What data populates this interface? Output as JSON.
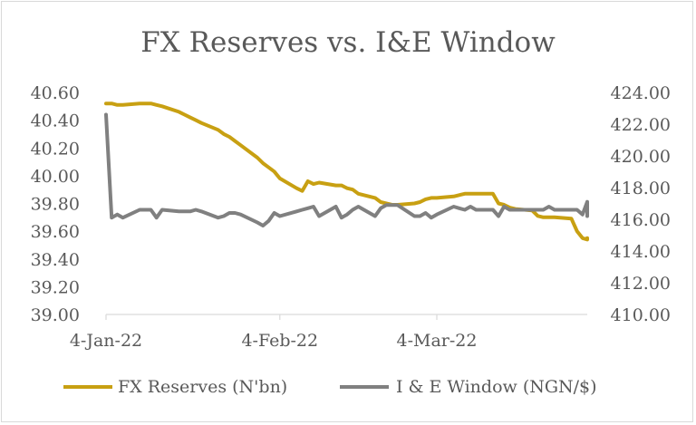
{
  "chart_data": {
    "type": "line",
    "title": "FX Reserves vs. I&E Window",
    "xlabel": "",
    "ylabel": "",
    "x_start": "2022-01-04",
    "x_ticks": [
      "4-Jan-22",
      "4-Feb-22",
      "4-Mar-22"
    ],
    "x_tick_dates": [
      "2022-01-04",
      "2022-02-04",
      "2022-03-04"
    ],
    "x_end": "2022-03-31",
    "y_left": {
      "ylim": [
        39.0,
        40.6
      ],
      "ticks": [
        "39.00",
        "39.20",
        "39.40",
        "39.60",
        "39.80",
        "40.00",
        "40.20",
        "40.40",
        "40.60"
      ]
    },
    "y_right": {
      "ylim": [
        410.0,
        424.0
      ],
      "ticks": [
        "410.00",
        "412.00",
        "414.00",
        "416.00",
        "418.00",
        "420.00",
        "422.00",
        "424.00"
      ]
    },
    "grid": false,
    "legend_position": "bottom",
    "series": [
      {
        "name": "FX Reserves  (N'bn)",
        "axis": "left",
        "color": "#c8a012",
        "points": [
          [
            "2022-01-04",
            40.52
          ],
          [
            "2022-01-05",
            40.52
          ],
          [
            "2022-01-06",
            40.51
          ],
          [
            "2022-01-07",
            40.51
          ],
          [
            "2022-01-10",
            40.52
          ],
          [
            "2022-01-11",
            40.52
          ],
          [
            "2022-01-12",
            40.52
          ],
          [
            "2022-01-13",
            40.51
          ],
          [
            "2022-01-14",
            40.5
          ],
          [
            "2022-01-17",
            40.46
          ],
          [
            "2022-01-18",
            40.44
          ],
          [
            "2022-01-19",
            40.42
          ],
          [
            "2022-01-20",
            40.4
          ],
          [
            "2022-01-21",
            40.38
          ],
          [
            "2022-01-24",
            40.33
          ],
          [
            "2022-01-25",
            40.3
          ],
          [
            "2022-01-26",
            40.28
          ],
          [
            "2022-01-27",
            40.25
          ],
          [
            "2022-01-28",
            40.22
          ],
          [
            "2022-01-31",
            40.13
          ],
          [
            "2022-02-01",
            40.09
          ],
          [
            "2022-02-02",
            40.06
          ],
          [
            "2022-02-03",
            40.03
          ],
          [
            "2022-02-04",
            39.98
          ],
          [
            "2022-02-07",
            39.91
          ],
          [
            "2022-02-08",
            39.89
          ],
          [
            "2022-02-09",
            39.96
          ],
          [
            "2022-02-10",
            39.94
          ],
          [
            "2022-02-11",
            39.95
          ],
          [
            "2022-02-14",
            39.93
          ],
          [
            "2022-02-15",
            39.93
          ],
          [
            "2022-02-16",
            39.91
          ],
          [
            "2022-02-17",
            39.9
          ],
          [
            "2022-02-18",
            39.87
          ],
          [
            "2022-02-21",
            39.84
          ],
          [
            "2022-02-22",
            39.81
          ],
          [
            "2022-02-23",
            39.8
          ],
          [
            "2022-02-24",
            39.79
          ],
          [
            "2022-02-25",
            39.79
          ],
          [
            "2022-02-28",
            39.8
          ],
          [
            "2022-03-01",
            39.81
          ],
          [
            "2022-03-02",
            39.83
          ],
          [
            "2022-03-03",
            39.84
          ],
          [
            "2022-03-04",
            39.84
          ],
          [
            "2022-03-07",
            39.85
          ],
          [
            "2022-03-08",
            39.86
          ],
          [
            "2022-03-09",
            39.87
          ],
          [
            "2022-03-10",
            39.87
          ],
          [
            "2022-03-11",
            39.87
          ],
          [
            "2022-03-14",
            39.87
          ],
          [
            "2022-03-15",
            39.8
          ],
          [
            "2022-03-16",
            39.79
          ],
          [
            "2022-03-17",
            39.77
          ],
          [
            "2022-03-18",
            39.76
          ],
          [
            "2022-03-21",
            39.75
          ],
          [
            "2022-03-22",
            39.71
          ],
          [
            "2022-03-23",
            39.7
          ],
          [
            "2022-03-24",
            39.7
          ],
          [
            "2022-03-25",
            39.7
          ],
          [
            "2022-03-28",
            39.69
          ],
          [
            "2022-03-29",
            39.6
          ],
          [
            "2022-03-30",
            39.55
          ],
          [
            "2022-03-31",
            39.54
          ],
          [
            "2022-04-01",
            39.54
          ],
          [
            "2022-04-04",
            39.55
          ],
          [
            "2022-04-05",
            39.55
          ]
        ]
      },
      {
        "name": "I & E Window (NGN/$)",
        "axis": "right",
        "color": "#808080",
        "points": [
          [
            "2022-01-04",
            422.6
          ],
          [
            "2022-01-05",
            416.1
          ],
          [
            "2022-01-06",
            416.3
          ],
          [
            "2022-01-07",
            416.1
          ],
          [
            "2022-01-10",
            416.6
          ],
          [
            "2022-01-11",
            416.6
          ],
          [
            "2022-01-12",
            416.6
          ],
          [
            "2022-01-13",
            416.1
          ],
          [
            "2022-01-14",
            416.6
          ],
          [
            "2022-01-17",
            416.5
          ],
          [
            "2022-01-18",
            416.5
          ],
          [
            "2022-01-19",
            416.5
          ],
          [
            "2022-01-20",
            416.6
          ],
          [
            "2022-01-21",
            416.5
          ],
          [
            "2022-01-24",
            416.1
          ],
          [
            "2022-01-25",
            416.2
          ],
          [
            "2022-01-26",
            416.4
          ],
          [
            "2022-01-27",
            416.4
          ],
          [
            "2022-01-28",
            416.3
          ],
          [
            "2022-01-31",
            415.8
          ],
          [
            "2022-02-01",
            415.6
          ],
          [
            "2022-02-02",
            415.9
          ],
          [
            "2022-02-03",
            416.4
          ],
          [
            "2022-02-04",
            416.2
          ],
          [
            "2022-02-07",
            416.5
          ],
          [
            "2022-02-08",
            416.6
          ],
          [
            "2022-02-09",
            416.7
          ],
          [
            "2022-02-10",
            416.8
          ],
          [
            "2022-02-11",
            416.2
          ],
          [
            "2022-02-14",
            416.8
          ],
          [
            "2022-02-15",
            416.1
          ],
          [
            "2022-02-16",
            416.3
          ],
          [
            "2022-02-17",
            416.6
          ],
          [
            "2022-02-18",
            416.8
          ],
          [
            "2022-02-21",
            416.2
          ],
          [
            "2022-02-22",
            416.7
          ],
          [
            "2022-02-23",
            416.9
          ],
          [
            "2022-02-24",
            416.9
          ],
          [
            "2022-02-25",
            416.9
          ],
          [
            "2022-02-28",
            416.2
          ],
          [
            "2022-03-01",
            416.2
          ],
          [
            "2022-03-02",
            416.4
          ],
          [
            "2022-03-03",
            416.1
          ],
          [
            "2022-03-04",
            416.3
          ],
          [
            "2022-03-07",
            416.8
          ],
          [
            "2022-03-08",
            416.7
          ],
          [
            "2022-03-09",
            416.6
          ],
          [
            "2022-03-10",
            416.8
          ],
          [
            "2022-03-11",
            416.6
          ],
          [
            "2022-03-14",
            416.6
          ],
          [
            "2022-03-15",
            416.2
          ],
          [
            "2022-03-16",
            416.8
          ],
          [
            "2022-03-17",
            416.6
          ],
          [
            "2022-03-18",
            416.6
          ],
          [
            "2022-03-21",
            416.6
          ],
          [
            "2022-03-22",
            416.6
          ],
          [
            "2022-03-23",
            416.6
          ],
          [
            "2022-03-24",
            416.8
          ],
          [
            "2022-03-25",
            416.6
          ],
          [
            "2022-03-28",
            416.6
          ],
          [
            "2022-03-29",
            416.6
          ],
          [
            "2022-03-30",
            416.3
          ],
          [
            "2022-03-31",
            417.1
          ],
          [
            "2022-04-01",
            416.2
          ],
          [
            "2022-04-02",
            416.6
          ],
          [
            "2022-04-04",
            416.6
          ],
          [
            "2022-04-05",
            417.1
          ]
        ]
      }
    ]
  }
}
